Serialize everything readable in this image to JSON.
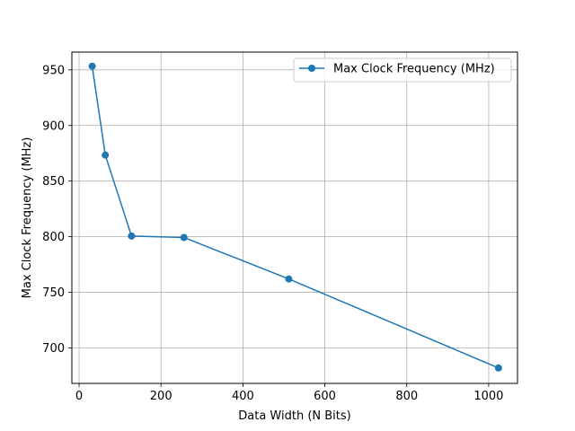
{
  "chart_data": {
    "type": "line",
    "title": "",
    "xlabel": "Data Width (N Bits)",
    "ylabel": "Max Clock Frequency (MHz)",
    "xlim": [
      -17.6,
      1070.4
    ],
    "ylim": [
      668.1,
      966.0
    ],
    "xticks": [
      0,
      200,
      400,
      600,
      800,
      1000
    ],
    "yticks": [
      700,
      750,
      800,
      850,
      900,
      950
    ],
    "grid": true,
    "legend_position": "top-right",
    "series": [
      {
        "name": "Max Clock Frequency (MHz)",
        "color": "#1f77b4",
        "marker": "circle",
        "x": [
          32,
          64,
          128,
          256,
          512,
          1024
        ],
        "y": [
          953.3,
          873.4,
          800.6,
          799.3,
          762.0,
          682.0
        ]
      }
    ]
  }
}
